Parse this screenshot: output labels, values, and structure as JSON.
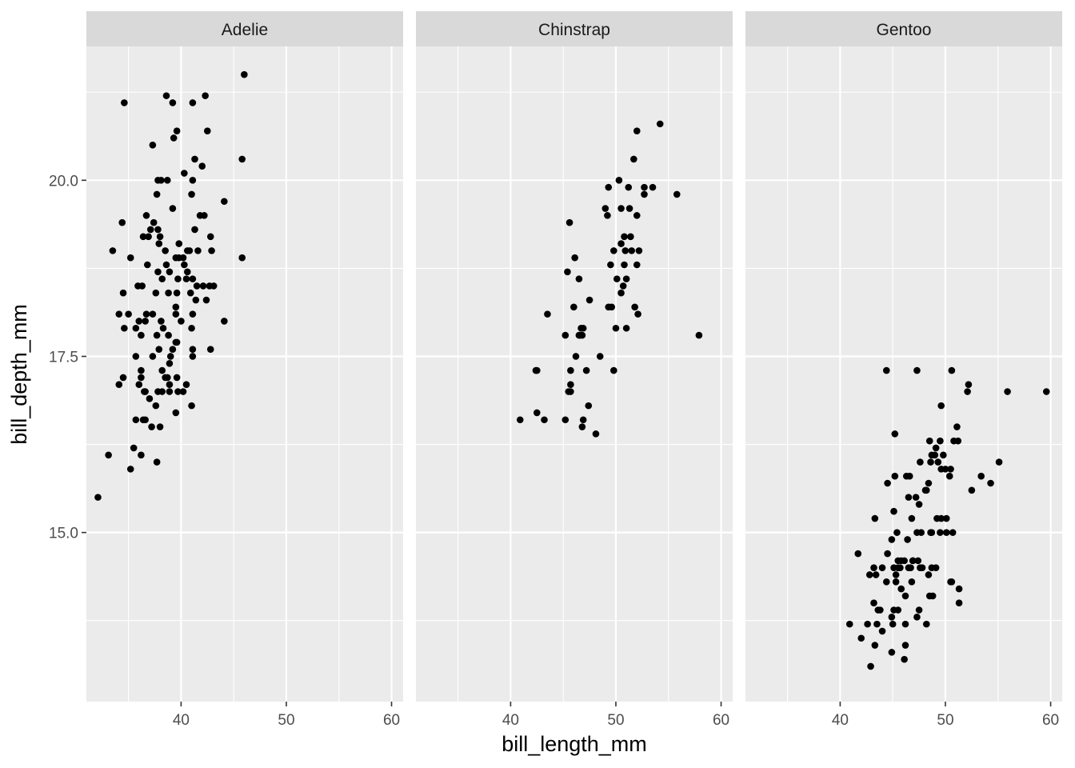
{
  "chart_data": {
    "type": "scatter",
    "facet_by": "species",
    "xlabel": "bill_length_mm",
    "ylabel": "bill_depth_mm",
    "xlim": [
      31.0,
      61.1
    ],
    "ylim": [
      12.6,
      21.9
    ],
    "x_ticks": [
      "40",
      "50",
      "60"
    ],
    "y_ticks": [
      "15.0",
      "17.5",
      "20.0"
    ],
    "x_tick_values": [
      40,
      50,
      60
    ],
    "y_tick_values": [
      15.0,
      17.5,
      20.0
    ],
    "x_minor_values": [
      35,
      45,
      55
    ],
    "y_minor_values": [
      13.75,
      16.25,
      18.75,
      21.25
    ],
    "grid": true,
    "point_color": "#000000",
    "panel_color": "#ebebeb",
    "strip_color": "#d9d9d9",
    "facets": [
      {
        "label": "Adelie",
        "points": [
          [
            46.0,
            21.5
          ],
          [
            38.6,
            21.2
          ],
          [
            42.3,
            21.2
          ],
          [
            34.6,
            21.1
          ],
          [
            39.2,
            21.1
          ],
          [
            41.1,
            21.1
          ],
          [
            42.5,
            20.7
          ],
          [
            39.6,
            20.7
          ],
          [
            39.3,
            20.6
          ],
          [
            37.3,
            20.5
          ],
          [
            45.8,
            20.3
          ],
          [
            41.3,
            20.3
          ],
          [
            42.0,
            20.2
          ],
          [
            40.3,
            20.1
          ],
          [
            37.8,
            20.0
          ],
          [
            38.1,
            20.0
          ],
          [
            38.7,
            20.0
          ],
          [
            41.1,
            20.0
          ],
          [
            37.7,
            19.8
          ],
          [
            41.0,
            19.8
          ],
          [
            44.1,
            19.7
          ],
          [
            39.2,
            19.6
          ],
          [
            36.7,
            19.5
          ],
          [
            42.2,
            19.5
          ],
          [
            41.8,
            19.5
          ],
          [
            34.4,
            19.4
          ],
          [
            37.4,
            19.4
          ],
          [
            37.1,
            19.3
          ],
          [
            37.8,
            19.3
          ],
          [
            41.3,
            19.3
          ],
          [
            36.4,
            19.2
          ],
          [
            38.0,
            19.2
          ],
          [
            42.8,
            19.2
          ],
          [
            36.9,
            19.2
          ],
          [
            39.8,
            19.1
          ],
          [
            37.9,
            19.1
          ],
          [
            41.6,
            19.0
          ],
          [
            33.5,
            19.0
          ],
          [
            40.6,
            19.0
          ],
          [
            42.9,
            19.0
          ],
          [
            40.8,
            19.0
          ],
          [
            38.5,
            19.0
          ],
          [
            35.2,
            18.9
          ],
          [
            39.5,
            18.9
          ],
          [
            39.8,
            18.9
          ],
          [
            40.2,
            18.9
          ],
          [
            45.8,
            18.9
          ],
          [
            40.3,
            18.8
          ],
          [
            38.6,
            18.8
          ],
          [
            36.8,
            18.8
          ],
          [
            40.6,
            18.7
          ],
          [
            38.9,
            18.7
          ],
          [
            37.8,
            18.7
          ],
          [
            39.7,
            18.6
          ],
          [
            38.2,
            18.6
          ],
          [
            40.5,
            18.6
          ],
          [
            41.1,
            18.6
          ],
          [
            36.3,
            18.5
          ],
          [
            41.5,
            18.5
          ],
          [
            42.1,
            18.5
          ],
          [
            42.7,
            18.5
          ],
          [
            43.1,
            18.5
          ],
          [
            35.9,
            18.5
          ],
          [
            39.6,
            18.4
          ],
          [
            38.8,
            18.4
          ],
          [
            40.9,
            18.4
          ],
          [
            37.6,
            18.4
          ],
          [
            34.5,
            18.4
          ],
          [
            41.4,
            18.3
          ],
          [
            42.4,
            18.3
          ],
          [
            39.5,
            18.2
          ],
          [
            36.7,
            18.1
          ],
          [
            35.0,
            18.1
          ],
          [
            37.3,
            18.1
          ],
          [
            39.5,
            18.1
          ],
          [
            41.1,
            18.1
          ],
          [
            34.1,
            18.1
          ],
          [
            38.1,
            18.0
          ],
          [
            36.0,
            18.0
          ],
          [
            36.6,
            18.0
          ],
          [
            40.0,
            18.0
          ],
          [
            44.1,
            18.0
          ],
          [
            41.0,
            17.9
          ],
          [
            35.7,
            17.9
          ],
          [
            34.6,
            17.9
          ],
          [
            38.3,
            17.9
          ],
          [
            36.2,
            17.8
          ],
          [
            37.7,
            17.8
          ],
          [
            38.8,
            17.8
          ],
          [
            39.6,
            17.7
          ],
          [
            39.5,
            17.7
          ],
          [
            39.2,
            17.6
          ],
          [
            37.9,
            17.6
          ],
          [
            41.1,
            17.6
          ],
          [
            42.8,
            17.6
          ],
          [
            37.3,
            17.5
          ],
          [
            35.7,
            17.5
          ],
          [
            41.1,
            17.5
          ],
          [
            39.0,
            17.5
          ],
          [
            38.9,
            17.4
          ],
          [
            38.2,
            17.3
          ],
          [
            36.2,
            17.3
          ],
          [
            39.6,
            17.2
          ],
          [
            38.7,
            17.2
          ],
          [
            36.2,
            17.2
          ],
          [
            34.5,
            17.2
          ],
          [
            38.5,
            17.2
          ],
          [
            40.5,
            17.1
          ],
          [
            36.0,
            17.1
          ],
          [
            38.9,
            17.1
          ],
          [
            34.1,
            17.1
          ],
          [
            37.8,
            17.0
          ],
          [
            38.2,
            17.0
          ],
          [
            36.5,
            17.0
          ],
          [
            40.2,
            17.0
          ],
          [
            38.9,
            17.0
          ],
          [
            39.7,
            17.0
          ],
          [
            36.6,
            17.0
          ],
          [
            37.0,
            16.9
          ],
          [
            35.7,
            16.6
          ],
          [
            36.4,
            16.6
          ],
          [
            41.0,
            16.8
          ],
          [
            37.6,
            16.8
          ],
          [
            39.5,
            16.7
          ],
          [
            36.6,
            16.6
          ],
          [
            37.2,
            16.5
          ],
          [
            38.0,
            16.5
          ],
          [
            35.5,
            16.2
          ],
          [
            33.1,
            16.1
          ],
          [
            36.2,
            16.1
          ],
          [
            37.7,
            16.0
          ],
          [
            35.2,
            15.9
          ],
          [
            32.1,
            15.5
          ]
        ]
      },
      {
        "label": "Chinstrap",
        "points": [
          [
            54.2,
            20.8
          ],
          [
            52.0,
            20.7
          ],
          [
            51.7,
            20.3
          ],
          [
            50.3,
            20.0
          ],
          [
            52.7,
            19.9
          ],
          [
            51.2,
            19.9
          ],
          [
            49.3,
            19.9
          ],
          [
            53.5,
            19.9
          ],
          [
            55.8,
            19.8
          ],
          [
            52.7,
            19.8
          ],
          [
            50.5,
            19.6
          ],
          [
            49.0,
            19.6
          ],
          [
            51.3,
            19.6
          ],
          [
            49.2,
            19.5
          ],
          [
            52.0,
            19.5
          ],
          [
            45.6,
            19.4
          ],
          [
            50.8,
            19.2
          ],
          [
            51.4,
            19.2
          ],
          [
            50.5,
            19.1
          ],
          [
            50.9,
            19.0
          ],
          [
            51.5,
            19.0
          ],
          [
            52.2,
            19.0
          ],
          [
            49.8,
            19.0
          ],
          [
            46.1,
            18.9
          ],
          [
            50.8,
            18.8
          ],
          [
            52.0,
            18.8
          ],
          [
            49.5,
            18.8
          ],
          [
            45.4,
            18.7
          ],
          [
            50.1,
            18.6
          ],
          [
            46.5,
            18.6
          ],
          [
            51.0,
            18.6
          ],
          [
            50.7,
            18.5
          ],
          [
            50.5,
            18.4
          ],
          [
            47.5,
            18.3
          ],
          [
            51.8,
            18.2
          ],
          [
            46.0,
            18.2
          ],
          [
            49.3,
            18.2
          ],
          [
            49.6,
            18.2
          ],
          [
            52.1,
            18.1
          ],
          [
            43.5,
            18.1
          ],
          [
            50.0,
            17.9
          ],
          [
            51.0,
            17.9
          ],
          [
            46.7,
            17.9
          ],
          [
            46.9,
            17.9
          ],
          [
            57.9,
            17.8
          ],
          [
            46.5,
            17.8
          ],
          [
            45.2,
            17.8
          ],
          [
            46.6,
            17.8
          ],
          [
            46.8,
            17.8
          ],
          [
            48.5,
            17.5
          ],
          [
            46.2,
            17.5
          ],
          [
            42.5,
            17.3
          ],
          [
            42.4,
            17.3
          ],
          [
            45.7,
            17.3
          ],
          [
            47.2,
            17.3
          ],
          [
            49.8,
            17.3
          ],
          [
            45.7,
            17.0
          ],
          [
            45.5,
            17.0
          ],
          [
            45.7,
            17.1
          ],
          [
            47.4,
            16.8
          ],
          [
            42.5,
            16.7
          ],
          [
            43.2,
            16.6
          ],
          [
            40.9,
            16.6
          ],
          [
            45.2,
            16.6
          ],
          [
            46.9,
            16.6
          ],
          [
            46.8,
            16.5
          ],
          [
            48.1,
            16.4
          ]
        ]
      },
      {
        "label": "Gentoo",
        "points": [
          [
            50.6,
            17.3
          ],
          [
            44.4,
            17.3
          ],
          [
            47.3,
            17.3
          ],
          [
            52.2,
            17.1
          ],
          [
            52.1,
            17.0
          ],
          [
            55.9,
            17.0
          ],
          [
            59.6,
            17.0
          ],
          [
            49.6,
            16.8
          ],
          [
            51.1,
            16.5
          ],
          [
            45.2,
            16.4
          ],
          [
            50.8,
            16.3
          ],
          [
            51.2,
            16.3
          ],
          [
            49.5,
            16.3
          ],
          [
            48.5,
            16.3
          ],
          [
            49.1,
            16.2
          ],
          [
            48.7,
            16.1
          ],
          [
            49.3,
            16.0
          ],
          [
            55.1,
            16.0
          ],
          [
            47.6,
            16.0
          ],
          [
            49.0,
            16.1
          ],
          [
            48.6,
            16.0
          ],
          [
            49.6,
            15.9
          ],
          [
            50.0,
            15.9
          ],
          [
            50.4,
            15.8
          ],
          [
            53.4,
            15.8
          ],
          [
            45.2,
            15.8
          ],
          [
            46.6,
            15.8
          ],
          [
            44.5,
            15.7
          ],
          [
            48.1,
            15.6
          ],
          [
            54.3,
            15.7
          ],
          [
            48.4,
            15.7
          ],
          [
            52.5,
            15.6
          ],
          [
            46.5,
            15.5
          ],
          [
            47.5,
            15.4
          ],
          [
            45.1,
            15.3
          ],
          [
            49.6,
            15.2
          ],
          [
            50.1,
            15.2
          ],
          [
            43.3,
            15.2
          ],
          [
            46.8,
            15.2
          ],
          [
            45.4,
            15.0
          ],
          [
            47.3,
            15.0
          ],
          [
            48.6,
            15.0
          ],
          [
            50.1,
            15.0
          ],
          [
            50.7,
            15.0
          ],
          [
            44.9,
            14.9
          ],
          [
            46.4,
            14.9
          ],
          [
            42.8,
            14.4
          ],
          [
            46.9,
            14.6
          ],
          [
            48.7,
            15.0
          ],
          [
            49.5,
            15.0
          ],
          [
            41.7,
            14.7
          ],
          [
            44.5,
            14.7
          ],
          [
            46.1,
            14.6
          ],
          [
            45.5,
            14.6
          ],
          [
            47.4,
            14.6
          ],
          [
            43.2,
            14.5
          ],
          [
            45.7,
            14.5
          ],
          [
            48.7,
            14.5
          ],
          [
            44.0,
            14.5
          ],
          [
            47.8,
            14.5
          ],
          [
            45.3,
            14.4
          ],
          [
            46.5,
            14.5
          ],
          [
            48.5,
            14.1
          ],
          [
            50.5,
            14.3
          ],
          [
            45.5,
            14.5
          ],
          [
            46.8,
            14.3
          ],
          [
            43.4,
            14.4
          ],
          [
            51.3,
            14.2
          ],
          [
            45.3,
            14.3
          ],
          [
            42.6,
            13.7
          ],
          [
            44.4,
            14.3
          ],
          [
            49.1,
            14.5
          ],
          [
            47.6,
            14.5
          ],
          [
            46.2,
            14.1
          ],
          [
            45.8,
            14.2
          ],
          [
            48.4,
            14.4
          ],
          [
            46.7,
            14.5
          ],
          [
            43.6,
            13.9
          ],
          [
            43.8,
            13.9
          ],
          [
            50.6,
            14.3
          ],
          [
            51.3,
            14.0
          ],
          [
            45.5,
            13.9
          ],
          [
            48.8,
            14.1
          ],
          [
            43.2,
            14.0
          ],
          [
            46.2,
            13.7
          ],
          [
            44.9,
            13.8
          ],
          [
            48.2,
            13.7
          ],
          [
            45.1,
            13.9
          ],
          [
            40.9,
            13.7
          ],
          [
            47.5,
            13.9
          ],
          [
            46.2,
            13.4
          ],
          [
            42.0,
            13.5
          ],
          [
            45.0,
            13.7
          ],
          [
            43.5,
            13.7
          ],
          [
            43.3,
            13.4
          ],
          [
            47.3,
            13.8
          ],
          [
            44.0,
            13.6
          ],
          [
            44.9,
            13.3
          ],
          [
            46.1,
            13.2
          ],
          [
            42.9,
            13.1
          ],
          [
            49.2,
            15.2
          ],
          [
            46.3,
            15.8
          ],
          [
            47.7,
            15.0
          ],
          [
            50.5,
            15.9
          ],
          [
            45.1,
            14.5
          ],
          [
            47.2,
            15.5
          ],
          [
            49.8,
            16.1
          ],
          [
            46.9,
            14.6
          ],
          [
            48.2,
            15.6
          ],
          [
            45.8,
            14.6
          ]
        ]
      }
    ]
  }
}
